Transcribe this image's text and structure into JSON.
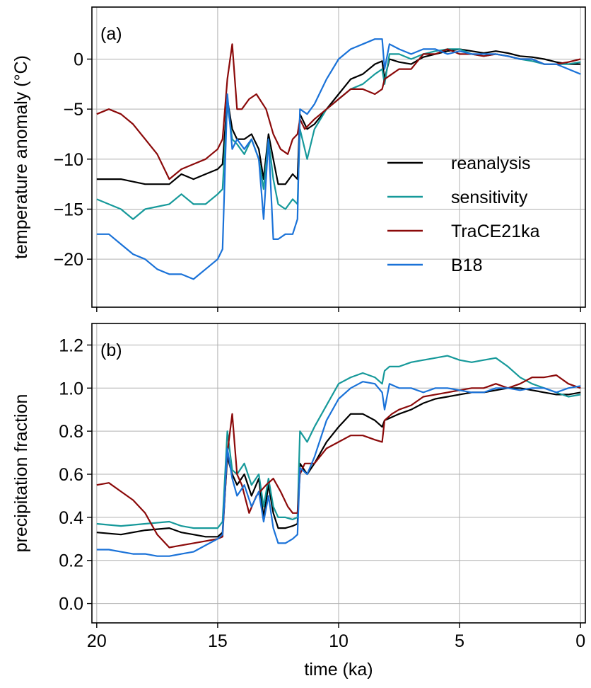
{
  "colors": {
    "reanalysis": "#000000",
    "sensitivity": "#16999a",
    "trace": "#8b0a0a",
    "b18": "#1a72d8",
    "grid": "#b0b0b0",
    "axes": "#000000"
  },
  "chart_data": [
    {
      "type": "line",
      "panel_label": "(a)",
      "xlabel": "",
      "ylabel": "temperature anomaly (°C)",
      "xlim": [
        20.2,
        -0.2
      ],
      "ylim": [
        -24.8,
        5.2
      ],
      "xticks": [
        20,
        15,
        10,
        5,
        0
      ],
      "xtick_labels": [
        "",
        "",
        "",
        "",
        ""
      ],
      "yticks": [
        -20,
        -15,
        -10,
        -5,
        0
      ],
      "ytick_labels": [
        "−20",
        "−15",
        "−10",
        "−5",
        "0"
      ],
      "grid": true,
      "legend": "right",
      "legend_entries": [
        "reanalysis",
        "sensitivity",
        "TraCE21ka",
        "B18"
      ],
      "series": [
        {
          "name": "reanalysis",
          "color_key": "reanalysis",
          "x": [
            20,
            19,
            18,
            17,
            16.5,
            16,
            15.5,
            15,
            14.8,
            14.6,
            14.4,
            14.2,
            13.9,
            13.6,
            13.3,
            13.1,
            12.9,
            12.7,
            12.5,
            12.2,
            11.9,
            11.7,
            11.6,
            11.3,
            11,
            10.5,
            10,
            9.5,
            9,
            8.5,
            8.2,
            8.1,
            7.9,
            7.5,
            7,
            6.5,
            6,
            5.5,
            5,
            4.5,
            4,
            3.5,
            3,
            2.5,
            2,
            1.5,
            1,
            0.5,
            0
          ],
          "y": [
            -12,
            -12,
            -12.5,
            -12.5,
            -11.5,
            -12,
            -11.5,
            -11,
            -10.5,
            -4,
            -7,
            -8,
            -8,
            -7.5,
            -9,
            -12,
            -7.5,
            -10,
            -12.5,
            -12.5,
            -11.5,
            -12,
            -5.5,
            -7,
            -6.5,
            -5,
            -3.5,
            -2,
            -1.5,
            -0.5,
            -0.2,
            -2,
            0,
            -0.3,
            -0.5,
            0.2,
            0.5,
            0.8,
            1,
            0.8,
            0.6,
            0.8,
            0.6,
            0.3,
            0.2,
            0,
            -0.3,
            -0.5,
            -0.5
          ]
        },
        {
          "name": "sensitivity",
          "color_key": "sensitivity",
          "x": [
            20,
            19,
            18.5,
            18,
            17,
            16.5,
            16,
            15.5,
            15,
            14.8,
            14.6,
            14.4,
            14.2,
            13.9,
            13.6,
            13.3,
            13.1,
            12.9,
            12.7,
            12.5,
            12.2,
            11.9,
            11.7,
            11.6,
            11.3,
            11,
            10.5,
            10,
            9.5,
            9,
            8.5,
            8.2,
            8.1,
            7.9,
            7.5,
            7,
            6.5,
            6,
            5.5,
            5,
            4.5,
            4,
            3.5,
            3,
            2.5,
            2,
            1.5,
            1,
            0.5,
            0
          ],
          "y": [
            -14,
            -15,
            -16,
            -15,
            -14.5,
            -13.5,
            -14.5,
            -14.5,
            -13.5,
            -13,
            -4.5,
            -8,
            -8.5,
            -9.5,
            -8,
            -10,
            -13,
            -8,
            -12,
            -14.5,
            -15,
            -14,
            -14.5,
            -7,
            -10,
            -7,
            -5,
            -4,
            -3,
            -2.5,
            -1.5,
            -1,
            -2.5,
            0.5,
            0.5,
            0,
            0.5,
            0.8,
            1,
            1,
            0.5,
            0.3,
            0.5,
            0.3,
            0,
            -0.2,
            -0.5,
            -0.5,
            -0.5,
            -0.3
          ]
        },
        {
          "name": "TraCE21ka",
          "color_key": "trace",
          "x": [
            20,
            19.5,
            19,
            18.5,
            18,
            17.5,
            17,
            16.5,
            16,
            15.5,
            15,
            14.8,
            14.6,
            14.4,
            14.2,
            14,
            13.7,
            13.4,
            13,
            12.7,
            12.4,
            12.1,
            11.9,
            11.7,
            11.6,
            11.4,
            11,
            10.5,
            10,
            9.5,
            9,
            8.5,
            8.2,
            8.1,
            7.8,
            7.5,
            7,
            6.5,
            6,
            5.5,
            5,
            4.5,
            4,
            3.5,
            3,
            2.5,
            2,
            1.5,
            1,
            0.5,
            0
          ],
          "y": [
            -5.5,
            -5,
            -5.5,
            -6.5,
            -8,
            -9.5,
            -12,
            -11,
            -10.5,
            -10,
            -9,
            -8,
            -2,
            1.5,
            -5,
            -5,
            -4,
            -3.5,
            -5,
            -7.5,
            -9,
            -9.5,
            -8,
            -7.5,
            -6,
            -7,
            -6,
            -5,
            -4,
            -3,
            -3,
            -3.5,
            -3,
            -2,
            -1.5,
            -1,
            -1,
            0.5,
            0.5,
            1,
            0.5,
            0.5,
            0.3,
            0.5,
            0.3,
            0,
            0,
            -0.5,
            -0.5,
            -0.3,
            0
          ]
        },
        {
          "name": "B18",
          "color_key": "b18",
          "x": [
            20,
            19.5,
            19,
            18.5,
            18,
            17.5,
            17,
            16.5,
            16,
            15.5,
            15,
            14.8,
            14.6,
            14.4,
            14.2,
            13.9,
            13.6,
            13.3,
            13.1,
            12.9,
            12.7,
            12.5,
            12.2,
            11.9,
            11.7,
            11.6,
            11.3,
            11,
            10.5,
            10,
            9.5,
            9,
            8.5,
            8.2,
            8.1,
            7.9,
            7.5,
            7,
            6.5,
            6,
            5.5,
            5,
            4.5,
            4,
            3.5,
            3,
            2.5,
            2,
            1.5,
            1,
            0.5,
            0
          ],
          "y": [
            -17.5,
            -17.5,
            -18.5,
            -19.5,
            -20,
            -21,
            -21.5,
            -21.5,
            -22,
            -21,
            -20,
            -19,
            -3.5,
            -9,
            -8,
            -9,
            -8,
            -10,
            -16,
            -8,
            -18,
            -18,
            -17.5,
            -17.5,
            -16,
            -5,
            -5.5,
            -4.5,
            -2,
            0,
            1,
            1.5,
            2,
            2,
            -1,
            1.5,
            1,
            0.5,
            1,
            1,
            0.5,
            0.8,
            0.5,
            0.5,
            0.5,
            0.3,
            0,
            0,
            -0.5,
            -0.5,
            -1,
            -1.5
          ]
        }
      ]
    },
    {
      "type": "line",
      "panel_label": "(b)",
      "xlabel": "time (ka)",
      "ylabel": "precipitation fraction",
      "xlim": [
        20.2,
        -0.2
      ],
      "ylim": [
        -0.09,
        1.3
      ],
      "xticks": [
        20,
        15,
        10,
        5,
        0
      ],
      "xtick_labels": [
        "20",
        "15",
        "10",
        "5",
        "0"
      ],
      "yticks": [
        0.0,
        0.2,
        0.4,
        0.6,
        0.8,
        1.0,
        1.2
      ],
      "ytick_labels": [
        "0.0",
        "0.2",
        "0.4",
        "0.6",
        "0.8",
        "1.0",
        "1.2"
      ],
      "grid": true,
      "series": [
        {
          "name": "reanalysis",
          "color_key": "reanalysis",
          "x": [
            20,
            19,
            18,
            17,
            16.5,
            16,
            15.5,
            15,
            14.8,
            14.6,
            14.4,
            14.2,
            13.9,
            13.6,
            13.3,
            13.1,
            12.9,
            12.7,
            12.5,
            12.2,
            11.9,
            11.7,
            11.6,
            11.3,
            11,
            10.5,
            10,
            9.5,
            9,
            8.5,
            8.2,
            8.1,
            7.9,
            7.5,
            7,
            6.5,
            6,
            5.5,
            5,
            4.5,
            4,
            3.5,
            3,
            2.5,
            2,
            1.5,
            1,
            0.5,
            0
          ],
          "y": [
            0.33,
            0.32,
            0.34,
            0.35,
            0.33,
            0.32,
            0.31,
            0.31,
            0.33,
            0.68,
            0.6,
            0.55,
            0.6,
            0.5,
            0.58,
            0.4,
            0.55,
            0.42,
            0.35,
            0.35,
            0.36,
            0.37,
            0.65,
            0.6,
            0.65,
            0.75,
            0.82,
            0.88,
            0.88,
            0.85,
            0.82,
            0.85,
            0.86,
            0.88,
            0.9,
            0.93,
            0.95,
            0.96,
            0.97,
            0.98,
            0.98,
            0.99,
            1.0,
            1.0,
            0.99,
            0.98,
            0.97,
            0.97,
            0.98
          ]
        },
        {
          "name": "sensitivity",
          "color_key": "sensitivity",
          "x": [
            20,
            19,
            18,
            17,
            16.5,
            16,
            15.5,
            15,
            14.8,
            14.6,
            14.4,
            14.2,
            13.9,
            13.6,
            13.3,
            13.1,
            12.9,
            12.7,
            12.5,
            12.2,
            11.9,
            11.7,
            11.6,
            11.3,
            11,
            10.5,
            10,
            9.5,
            9,
            8.5,
            8.2,
            8.1,
            7.9,
            7.5,
            7,
            6.5,
            6,
            5.5,
            5,
            4.5,
            4,
            3.5,
            3,
            2.5,
            2,
            1.5,
            1,
            0.5,
            0
          ],
          "y": [
            0.37,
            0.36,
            0.37,
            0.38,
            0.36,
            0.35,
            0.35,
            0.35,
            0.38,
            0.8,
            0.62,
            0.6,
            0.65,
            0.55,
            0.6,
            0.45,
            0.58,
            0.45,
            0.4,
            0.4,
            0.39,
            0.4,
            0.8,
            0.75,
            0.82,
            0.92,
            1.02,
            1.05,
            1.07,
            1.05,
            1.02,
            1.08,
            1.1,
            1.1,
            1.12,
            1.13,
            1.14,
            1.15,
            1.13,
            1.12,
            1.13,
            1.14,
            1.1,
            1.05,
            1.02,
            1.0,
            0.98,
            0.96,
            0.97
          ]
        },
        {
          "name": "TraCE21ka",
          "color_key": "trace",
          "x": [
            20,
            19.5,
            19,
            18.5,
            18,
            17.5,
            17,
            16.5,
            16,
            15.5,
            15,
            14.8,
            14.6,
            14.4,
            14.2,
            14,
            13.7,
            13.4,
            13,
            12.7,
            12.4,
            12.1,
            11.9,
            11.7,
            11.6,
            11.4,
            11,
            10.5,
            10,
            9.5,
            9,
            8.5,
            8.2,
            8.1,
            7.8,
            7.5,
            7,
            6.5,
            6,
            5.5,
            5,
            4.5,
            4,
            3.5,
            3,
            2.5,
            2,
            1.5,
            1,
            0.5,
            0
          ],
          "y": [
            0.55,
            0.56,
            0.52,
            0.48,
            0.42,
            0.32,
            0.26,
            0.27,
            0.28,
            0.29,
            0.3,
            0.31,
            0.7,
            0.88,
            0.6,
            0.55,
            0.42,
            0.5,
            0.55,
            0.58,
            0.52,
            0.45,
            0.42,
            0.42,
            0.6,
            0.65,
            0.65,
            0.72,
            0.75,
            0.78,
            0.78,
            0.76,
            0.75,
            0.85,
            0.88,
            0.9,
            0.92,
            0.96,
            0.97,
            0.98,
            0.99,
            1.0,
            1.0,
            1.02,
            1.0,
            1.02,
            1.05,
            1.05,
            1.06,
            1.02,
            1.0
          ]
        },
        {
          "name": "B18",
          "color_key": "b18",
          "x": [
            20,
            19.5,
            19,
            18.5,
            18,
            17.5,
            17,
            16.5,
            16,
            15.5,
            15,
            14.8,
            14.6,
            14.4,
            14.2,
            13.9,
            13.6,
            13.3,
            13.1,
            12.9,
            12.7,
            12.5,
            12.2,
            11.9,
            11.7,
            11.6,
            11.3,
            11,
            10.5,
            10,
            9.5,
            9,
            8.5,
            8.2,
            8.1,
            7.9,
            7.5,
            7,
            6.5,
            6,
            5.5,
            5,
            4.5,
            4,
            3.5,
            3,
            2.5,
            2,
            1.5,
            1,
            0.5,
            0
          ],
          "y": [
            0.25,
            0.25,
            0.24,
            0.23,
            0.23,
            0.22,
            0.22,
            0.23,
            0.24,
            0.27,
            0.3,
            0.32,
            0.72,
            0.58,
            0.5,
            0.55,
            0.45,
            0.52,
            0.38,
            0.5,
            0.35,
            0.28,
            0.28,
            0.3,
            0.32,
            0.63,
            0.6,
            0.68,
            0.85,
            0.95,
            1.0,
            1.03,
            1.02,
            0.98,
            0.9,
            1.02,
            1.0,
            1.0,
            0.98,
            1.0,
            1.0,
            0.99,
            0.98,
            0.98,
            1.0,
            1.0,
            0.99,
            1.0,
            1.0,
            0.98,
            1.0,
            1.01
          ]
        }
      ]
    }
  ]
}
